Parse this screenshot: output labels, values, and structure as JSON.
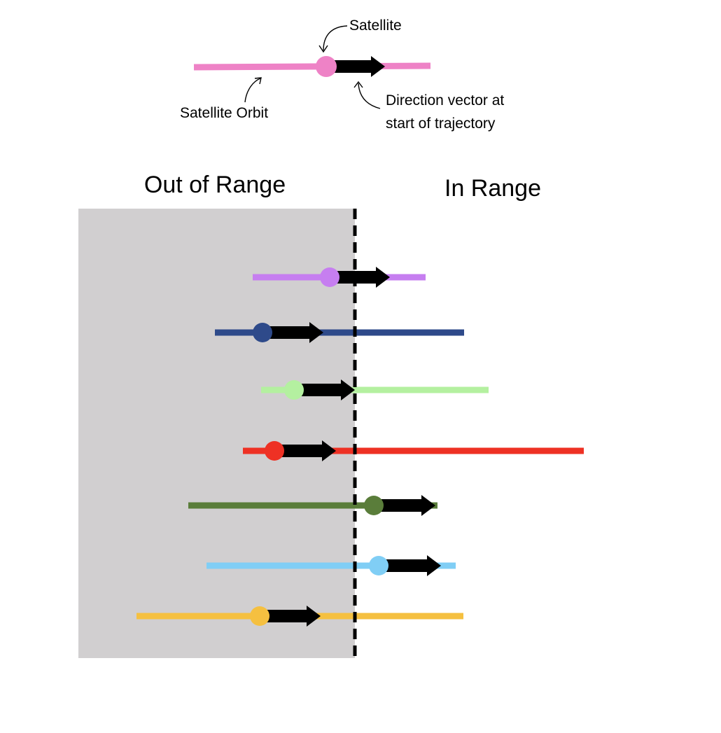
{
  "legend": {
    "satellite_label": "Satellite",
    "orbit_label": "Satellite Orbit",
    "direction_label_line1": "Direction vector at",
    "direction_label_line2": "start of trajectory",
    "example_color": "#ee82c6"
  },
  "regions": {
    "out_of_range_label": "Out of Range",
    "in_range_label": "In Range",
    "out_of_range_fill": "#d1cfd0",
    "boundary_color": "#000000"
  },
  "arrow_color": "#000000",
  "satellites": [
    {
      "color": "#c67ef0"
    },
    {
      "color": "#2e4a8a"
    },
    {
      "color": "#b4f0a0"
    },
    {
      "color": "#ee3124"
    },
    {
      "color": "#5a7d3a"
    },
    {
      "color": "#80cef5"
    },
    {
      "color": "#f5c040"
    }
  ]
}
